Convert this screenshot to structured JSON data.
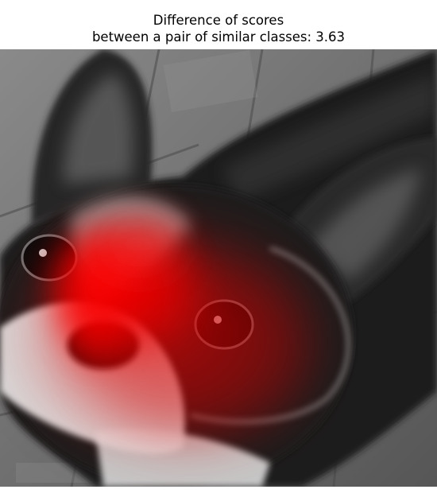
{
  "title": {
    "line1": "Difference of scores",
    "line2": "between a pair of similar classes: 3.63"
  },
  "image": {
    "subject": "black-and-white dog (Boston Terrier) photo in grayscale",
    "overlay": "red saliency heatmap",
    "overlay_color": "#ff0000"
  }
}
